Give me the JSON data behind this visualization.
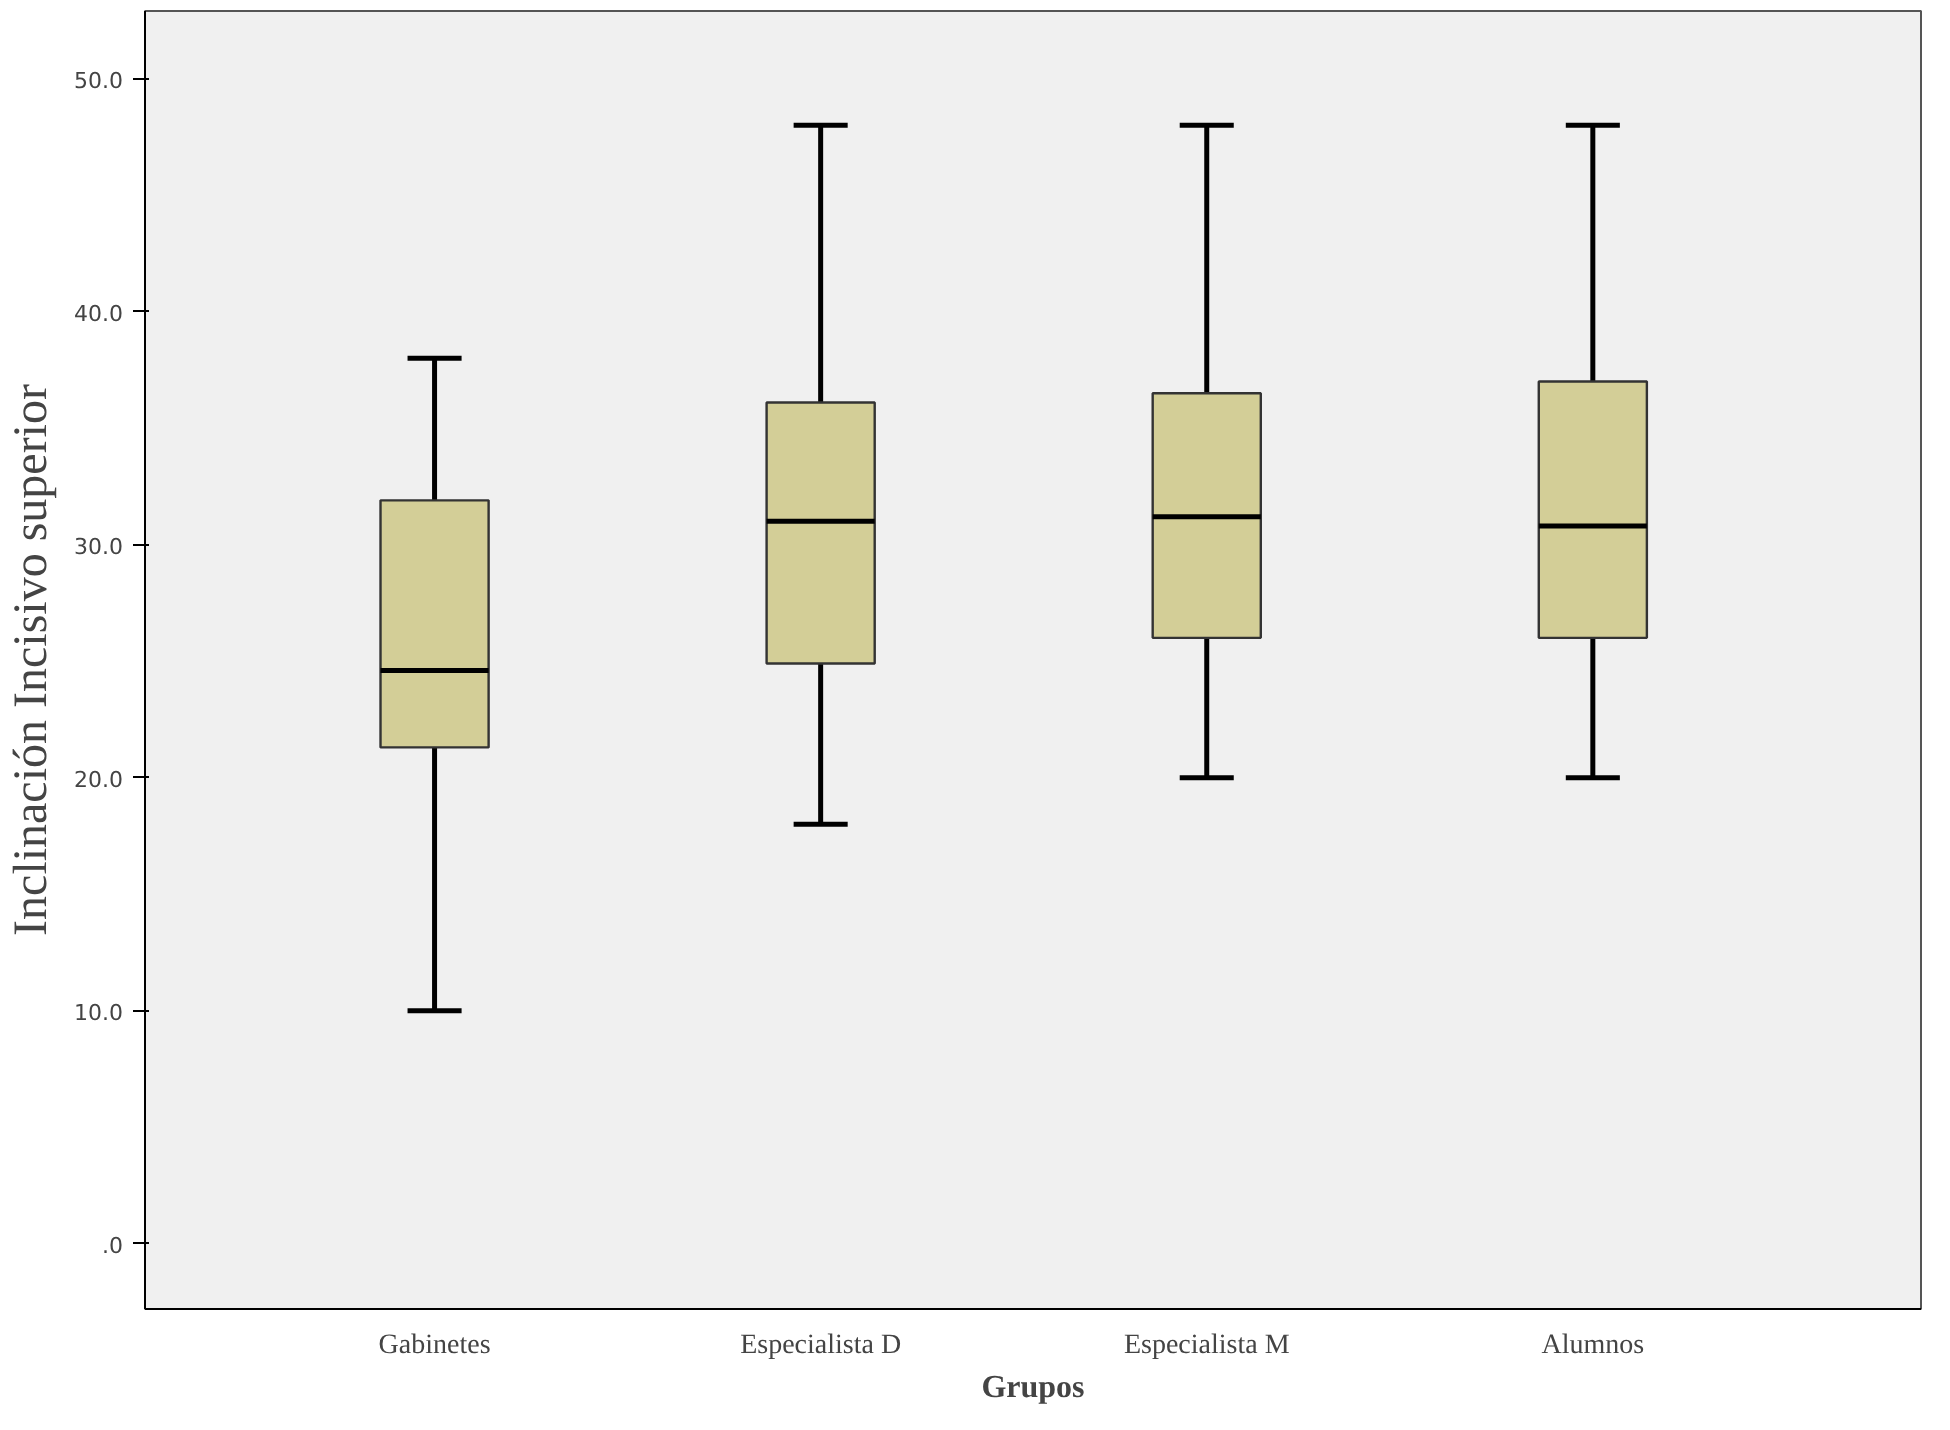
{
  "chart_data": {
    "type": "box",
    "xlabel": "Grupos",
    "ylabel": "Inclinación Incisivo superior",
    "categories": [
      "Gabinetes",
      "Especialista D",
      "Especialista M",
      "Alumnos"
    ],
    "color": "#d3ce97",
    "boxes": [
      {
        "low": 10,
        "q1": 21.3,
        "median": 24.6,
        "q3": 31.9,
        "high": 38
      },
      {
        "low": 18,
        "q1": 24.9,
        "median": 31.0,
        "q3": 36.1,
        "high": 48
      },
      {
        "low": 20,
        "q1": 26.0,
        "median": 31.2,
        "q3": 36.5,
        "high": 48
      },
      {
        "low": 20,
        "q1": 26.0,
        "median": 30.8,
        "q3": 37.0,
        "high": 48
      }
    ],
    "ylim": [
      -2.8,
      52.9
    ],
    "yticks": [
      {
        "value": 0,
        "label": ".0"
      },
      {
        "value": 10,
        "label": "10.0"
      },
      {
        "value": 20,
        "label": "20.0"
      },
      {
        "value": 30,
        "label": "30.0"
      },
      {
        "value": 40,
        "label": "40.0"
      },
      {
        "value": 50,
        "label": "50.0"
      }
    ],
    "grid": false
  }
}
